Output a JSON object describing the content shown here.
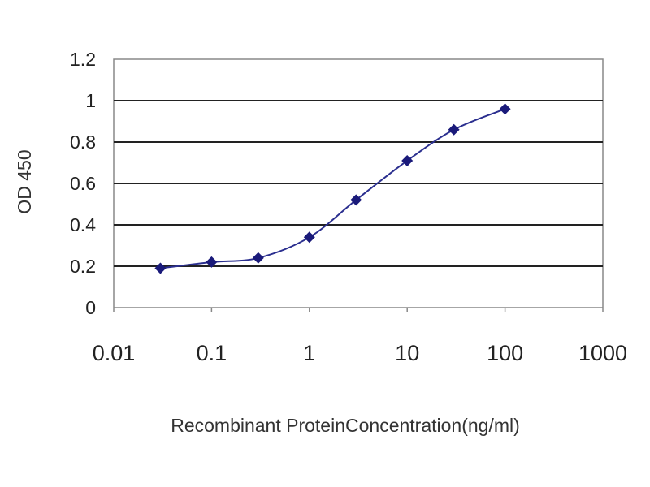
{
  "chart_data": {
    "type": "line",
    "title": "",
    "xlabel": "Recombinant ProteinConcentration(ng/ml)",
    "ylabel": "OD 450",
    "x_scale": "log",
    "xlim": [
      0.01,
      1000
    ],
    "ylim": [
      0,
      1.2
    ],
    "x_ticks": [
      0.01,
      0.1,
      1,
      10,
      100,
      1000
    ],
    "x_tick_labels": [
      "0.01",
      "0.1",
      "1",
      "10",
      "100",
      "1000"
    ],
    "y_ticks": [
      0,
      0.2,
      0.4,
      0.6,
      0.8,
      1,
      1.2
    ],
    "y_tick_labels": [
      "0",
      "0.2",
      "0.4",
      "0.6",
      "0.8",
      "1",
      "1.2"
    ],
    "grid": "horizontal",
    "legend": "none",
    "series": [
      {
        "x": [
          0.03,
          0.1,
          0.3,
          1,
          3,
          10,
          30,
          100
        ],
        "y": [
          0.19,
          0.22,
          0.24,
          0.34,
          0.52,
          0.71,
          0.86,
          0.96
        ],
        "color": "#2b2f8f",
        "marker": "diamond",
        "marker_color": "#1a1a7a"
      }
    ]
  }
}
